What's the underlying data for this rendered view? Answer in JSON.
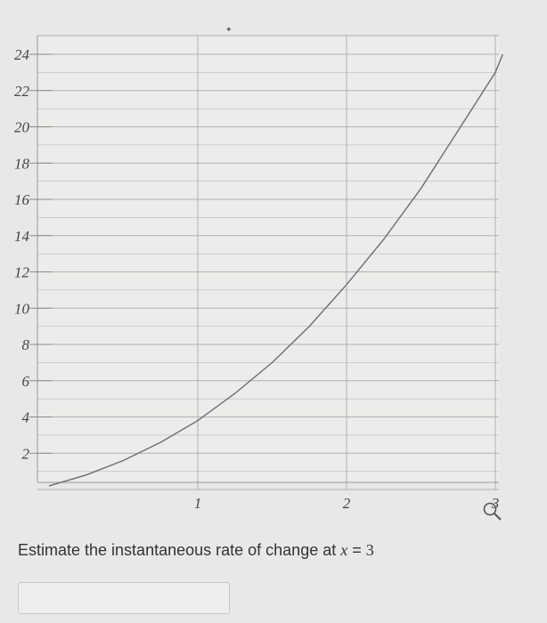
{
  "chart_data": {
    "type": "line",
    "title": "",
    "xlabel": "",
    "ylabel": "",
    "xlim": [
      0,
      3.1
    ],
    "ylim": [
      0,
      25
    ],
    "x_ticks": [
      1,
      2,
      3
    ],
    "x_tick_labels": [
      "1",
      "2",
      "3"
    ],
    "y_ticks": [
      2,
      4,
      6,
      8,
      10,
      12,
      14,
      16,
      18,
      20,
      22,
      24
    ],
    "y_tick_labels": [
      "2",
      "4",
      "6",
      "8",
      "10",
      "12",
      "14",
      "16",
      "18",
      "20",
      "22",
      "24"
    ],
    "grid": true,
    "series": [
      {
        "x": [
          0,
          0.25,
          0.5,
          0.75,
          1,
          1.25,
          1.5,
          1.75,
          2,
          2.25,
          2.5,
          2.75,
          3,
          3.05
        ],
        "y": [
          0.2,
          0.8,
          1.6,
          2.6,
          3.8,
          5.3,
          7.0,
          9.0,
          11.3,
          13.8,
          16.6,
          19.8,
          23.0,
          24.0
        ]
      }
    ],
    "colors": {
      "line": "#6b6d78",
      "grid": "#b0b0b0"
    }
  },
  "question": {
    "prefix": "Estimate the instantaneous rate of change at ",
    "variable": "x",
    "equals": "=",
    "value": "3"
  },
  "answer": {
    "value": "",
    "placeholder": ""
  }
}
